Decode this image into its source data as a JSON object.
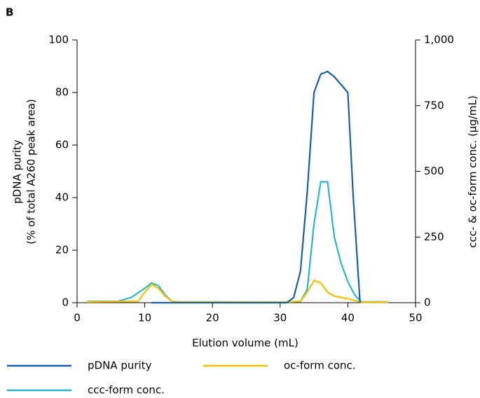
{
  "chart_data": {
    "type": "line",
    "panel_label": "B",
    "xlabel": "Elution volume (mL)",
    "ylabel": [
      "pDNA purity",
      "(% of total A260 peak area)"
    ],
    "y2label": "ccc- & oc-form conc. (µg/mL)",
    "xlim": [
      0,
      50
    ],
    "xticks": [
      0,
      10,
      20,
      30,
      40,
      50
    ],
    "ylim": [
      0,
      100
    ],
    "yticks": [
      0,
      20,
      40,
      60,
      80,
      100
    ],
    "y2lim": [
      0,
      1000
    ],
    "y2ticks": [
      0,
      250,
      500,
      750,
      {
        "value": 1000,
        "label": "1,000"
      }
    ],
    "grid": false,
    "series": [
      {
        "name": "pDNA purity",
        "color": "#1a5ea6",
        "axis": "y",
        "x": [
          11,
          31,
          32,
          33,
          34,
          35,
          36,
          37,
          38,
          39,
          40,
          40.8,
          41.8
        ],
        "values": [
          0,
          0,
          2,
          12,
          42,
          80,
          87,
          88,
          86,
          83,
          80,
          40,
          0
        ]
      },
      {
        "name": "oc-form conc.",
        "color": "#f5c000",
        "axis": "y2",
        "x": [
          1.5,
          9,
          10,
          11,
          12,
          13,
          14,
          15,
          30,
          33,
          34,
          35,
          36,
          37,
          38,
          39,
          40,
          41,
          42,
          46
        ],
        "values": [
          3,
          5,
          40,
          70,
          55,
          25,
          5,
          3,
          2,
          5,
          40,
          85,
          75,
          40,
          25,
          20,
          15,
          8,
          2,
          2
        ]
      },
      {
        "name": "ccc-form conc.",
        "color": "#2bb5c8",
        "axis": "y2",
        "x": [
          1.5,
          6,
          8,
          10,
          11,
          12,
          13,
          14,
          15,
          20,
          30,
          33,
          34,
          35,
          36,
          37,
          38,
          39,
          40,
          41,
          42,
          46
        ],
        "values": [
          5,
          5,
          20,
          55,
          75,
          65,
          30,
          5,
          3,
          3,
          2,
          5,
          50,
          300,
          460,
          460,
          250,
          150,
          80,
          30,
          3,
          3
        ]
      }
    ]
  }
}
